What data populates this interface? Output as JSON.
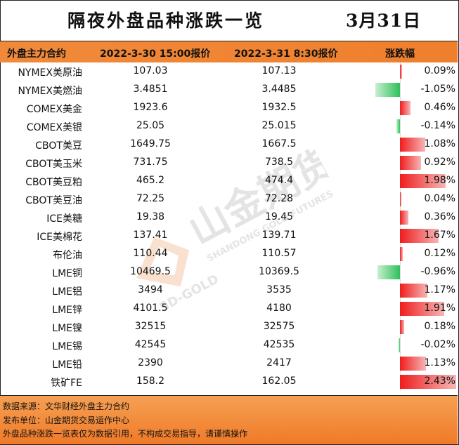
{
  "header": {
    "title": "隔夜外盘品种涨跌一览",
    "date": "3月31日"
  },
  "columns": {
    "contract": "外盘主力合约",
    "price1": "2022-3-30 15:00报价",
    "price2": "2022-3-31 8:30报价",
    "change": "涨跌幅"
  },
  "rows": [
    {
      "name": "NYMEX美原油",
      "p1": "107.03",
      "p2": "107.13",
      "pct": "0.09%",
      "change": 0.09
    },
    {
      "name": "NYMEX美燃油",
      "p1": "3.4851",
      "p2": "3.4485",
      "pct": "-1.05%",
      "change": -1.05
    },
    {
      "name": "COMEX美金",
      "p1": "1923.6",
      "p2": "1932.5",
      "pct": "0.46%",
      "change": 0.46
    },
    {
      "name": "COMEX美银",
      "p1": "25.05",
      "p2": "25.015",
      "pct": "-0.14%",
      "change": -0.14
    },
    {
      "name": "CBOT美豆",
      "p1": "1649.75",
      "p2": "1667.5",
      "pct": "1.08%",
      "change": 1.08
    },
    {
      "name": "CBOT美玉米",
      "p1": "731.75",
      "p2": "738.5",
      "pct": "0.92%",
      "change": 0.92
    },
    {
      "name": "CBOT美豆粕",
      "p1": "465.2",
      "p2": "474.4",
      "pct": "1.98%",
      "change": 1.98
    },
    {
      "name": "CBOT美豆油",
      "p1": "72.25",
      "p2": "72.28",
      "pct": "0.04%",
      "change": 0.04
    },
    {
      "name": "ICE美糖",
      "p1": "19.38",
      "p2": "19.45",
      "pct": "0.36%",
      "change": 0.36
    },
    {
      "name": "ICE美棉花",
      "p1": "137.41",
      "p2": "139.71",
      "pct": "1.67%",
      "change": 1.67
    },
    {
      "name": "布伦油",
      "p1": "110.44",
      "p2": "110.57",
      "pct": "0.12%",
      "change": 0.12
    },
    {
      "name": "LME铜",
      "p1": "10469.5",
      "p2": "10369.5",
      "pct": "-0.96%",
      "change": -0.96
    },
    {
      "name": "LME铝",
      "p1": "3494",
      "p2": "3535",
      "pct": "1.17%",
      "change": 1.17
    },
    {
      "name": "LME锌",
      "p1": "4101.5",
      "p2": "4180",
      "pct": "1.91%",
      "change": 1.91
    },
    {
      "name": "LME镍",
      "p1": "32515",
      "p2": "32575",
      "pct": "0.18%",
      "change": 0.18
    },
    {
      "name": "LME锡",
      "p1": "42545",
      "p2": "42535",
      "pct": "-0.02%",
      "change": -0.02
    },
    {
      "name": "LME铅",
      "p1": "2390",
      "p2": "2417",
      "pct": "1.13%",
      "change": 1.13
    },
    {
      "name": "铁矿FE",
      "p1": "158.2",
      "p2": "162.05",
      "pct": "2.43%",
      "change": 2.43
    }
  ],
  "footer": {
    "source": "数据来源：文华财经外盘主力合约",
    "publisher": "发布单位：山金期货交易运作中心",
    "disclaimer": "外盘品种涨跌一览表仅为数据引用，不构成交易指导，请谨慎操作"
  },
  "watermark": {
    "brand": "山金期货",
    "en": "SHANDONG GOLD FUTURES",
    "sub": "SD-GOLD"
  },
  "colors": {
    "header_orange": "#ef7f2c",
    "up_red": "#ef1d1d",
    "down_green": "#2fbf5a"
  }
}
